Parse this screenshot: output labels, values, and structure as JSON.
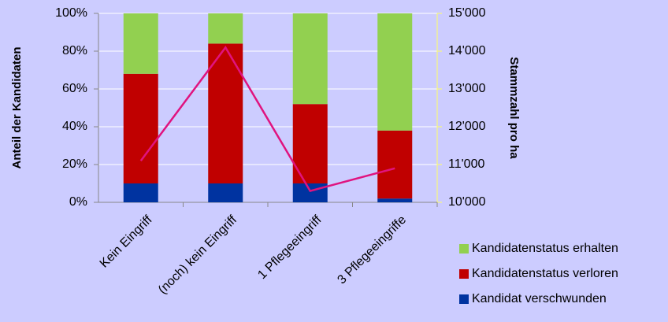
{
  "chart_data": {
    "type": "bar",
    "stacked": true,
    "categories": [
      "Kein Eingriff",
      "(noch) kein Eingriff",
      "1 Pflegeeingriff",
      "3 Pflegeeingriffe"
    ],
    "ylabel": "Anteil der Kandidaten",
    "y2label": "Stammzahl pro ha",
    "ylim": [
      0,
      100
    ],
    "yticks": [
      {
        "value": 0,
        "label": "0%"
      },
      {
        "value": 20,
        "label": "20%"
      },
      {
        "value": 40,
        "label": "40%"
      },
      {
        "value": 60,
        "label": "60%"
      },
      {
        "value": 80,
        "label": "80%"
      },
      {
        "value": 100,
        "label": "100%"
      }
    ],
    "y2lim": [
      10000,
      15000
    ],
    "y2ticks": [
      {
        "value": 10000,
        "label": "10'000"
      },
      {
        "value": 11000,
        "label": "11'000"
      },
      {
        "value": 12000,
        "label": "12'000"
      },
      {
        "value": 13000,
        "label": "13'000"
      },
      {
        "value": 14000,
        "label": "14'000"
      },
      {
        "value": 15000,
        "label": "15'000"
      }
    ],
    "grid": true,
    "series": [
      {
        "name": "Kandidat verschwunden",
        "color": "#0033a0",
        "values": [
          10,
          10,
          10,
          2
        ]
      },
      {
        "name": "Kandidatenstatus verloren",
        "color": "#c00000",
        "values": [
          58,
          74,
          42,
          36
        ]
      },
      {
        "name": "Kandidatenstatus erhalten",
        "color": "#92d050",
        "values": [
          32,
          16,
          48,
          62
        ]
      },
      {
        "type": "line",
        "axis": "y2",
        "color": "#e0137f",
        "values": [
          11100,
          14100,
          10300,
          10900
        ]
      }
    ]
  }
}
